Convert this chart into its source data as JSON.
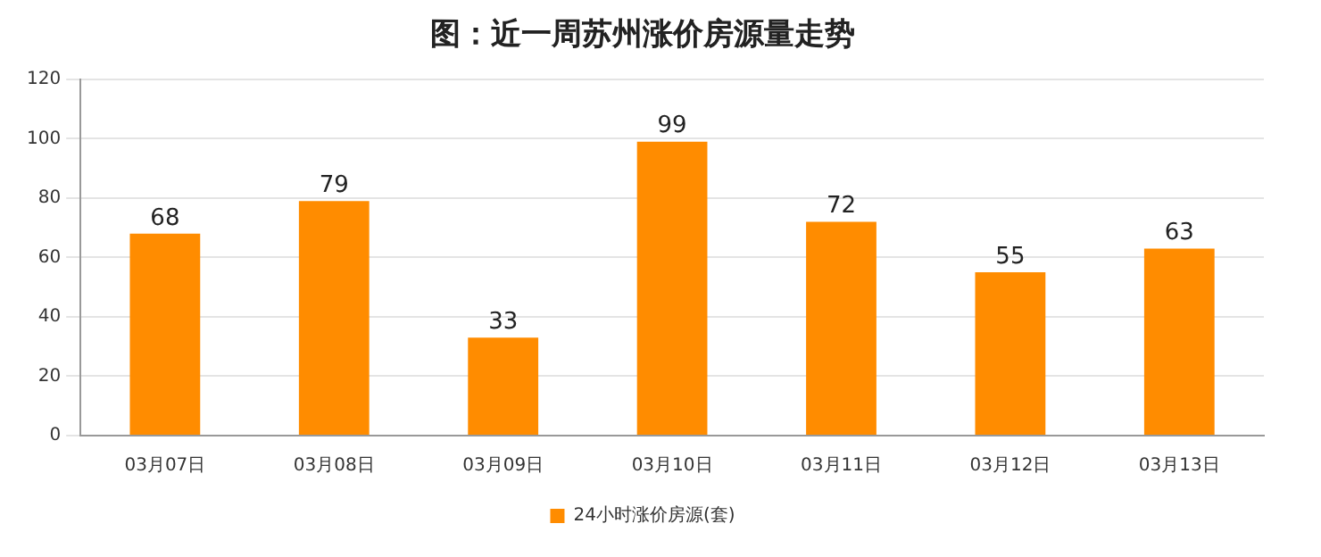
{
  "chart_data": {
    "type": "bar",
    "title": "图：近一周苏州涨价房源量走势",
    "categories": [
      "03月07日",
      "03月08日",
      "03月09日",
      "03月10日",
      "03月11日",
      "03月12日",
      "03月13日"
    ],
    "series": [
      {
        "name": "24小时涨价房源(套)",
        "color": "#ff8c00",
        "values": [
          68,
          79,
          33,
          99,
          72,
          55,
          63
        ]
      }
    ],
    "ylim": [
      0,
      120
    ],
    "yticks": [
      0,
      20,
      40,
      60,
      80,
      100,
      120
    ],
    "grid": "y",
    "legend": "bottom",
    "data_labels": true
  }
}
